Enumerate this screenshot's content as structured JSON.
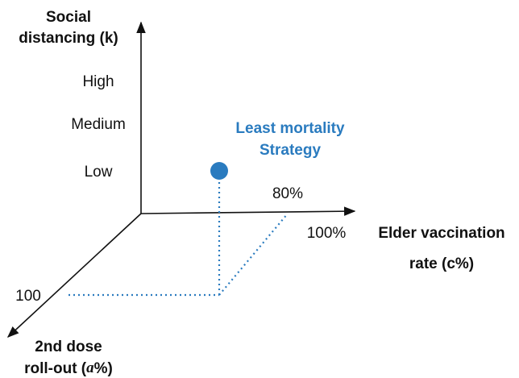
{
  "y_axis": {
    "label_lines": [
      "Social",
      "distancing (k)"
    ],
    "ticks": [
      "High",
      "Medium",
      "Low"
    ]
  },
  "x_axis": {
    "label_lines": [
      "Elder vaccination",
      "rate (c%)"
    ],
    "ticks": [
      "80%",
      "100%"
    ]
  },
  "z_axis": {
    "label_line1": "2nd dose",
    "label_line2_parts": [
      "roll-out (",
      "a",
      "%)"
    ],
    "ticks": [
      "100"
    ]
  },
  "annotation": {
    "lines": [
      "Least mortality",
      "Strategy"
    ]
  }
}
